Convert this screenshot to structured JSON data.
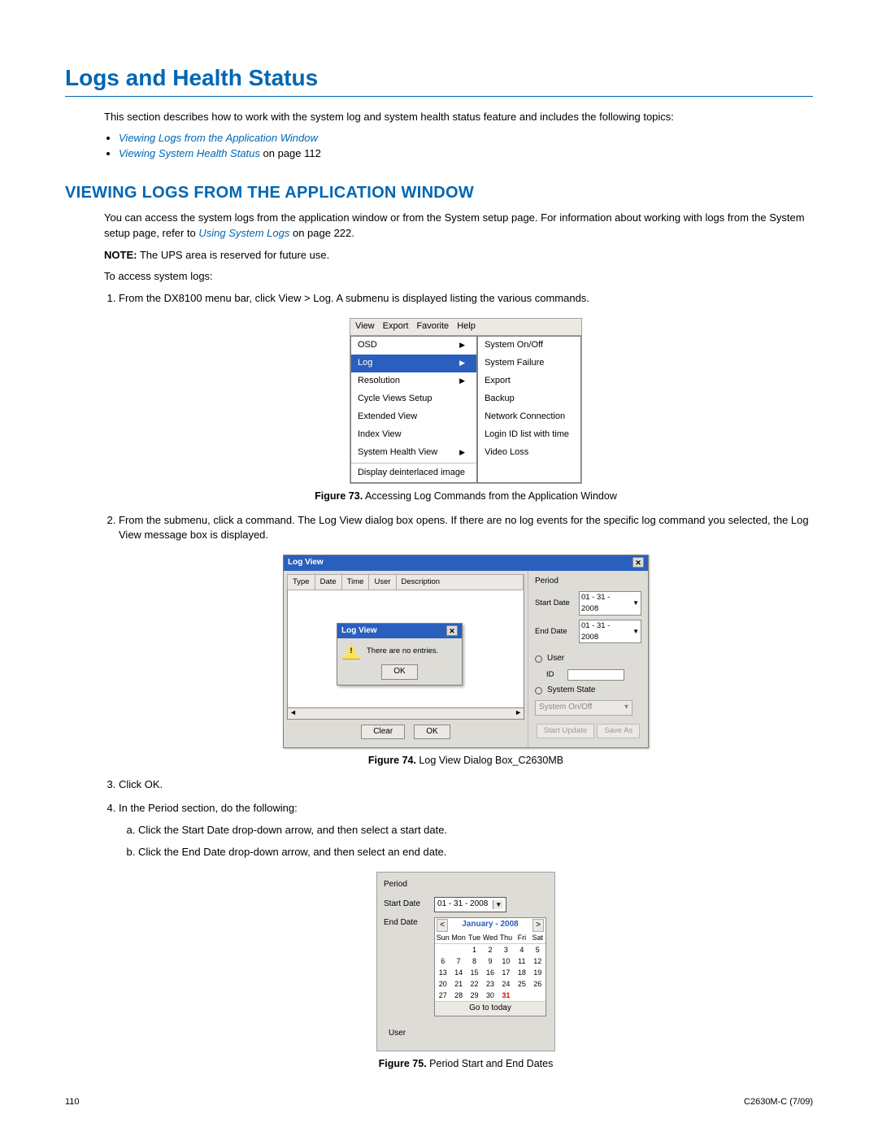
{
  "colors": {
    "accent": "#0066b3",
    "menu_highlight": "#2a5fbd",
    "panel_bg": "#dedcd6",
    "btn_bg": "#ece9e4"
  },
  "heading1": "Logs and Health Status",
  "intro": "This section describes how to work with the system log and system health status feature and includes the following topics:",
  "toc": {
    "item1": "Viewing Logs from the Application Window",
    "item2a": "Viewing System Health Status",
    "item2b": " on page 112"
  },
  "heading2": "VIEWING LOGS FROM THE APPLICATION WINDOW",
  "para1a": "You can access the system logs from the application window or from the System setup page. For information about working with logs from the System setup page, refer to ",
  "para1_link": "Using System Logs",
  "para1b": " on page 222.",
  "note_label": "NOTE:",
  "note_text": " The UPS area is reserved for future use.",
  "access_line": "To access system logs:",
  "step1": "From the DX8100 menu bar, click View > Log. A submenu is displayed listing the various commands.",
  "fig73": {
    "caption_label": "Figure 73.",
    "caption_text": "  Accessing Log Commands from the Application Window",
    "menubar": [
      "View",
      "Export",
      "Favorite",
      "Help"
    ],
    "col1": [
      "OSD",
      "Log",
      "Resolution",
      "Cycle Views Setup",
      "Extended View",
      "Index View",
      "System Health View",
      "Display deinterlaced image"
    ],
    "col1_arrows": [
      true,
      true,
      true,
      false,
      false,
      false,
      true,
      false
    ],
    "col1_selected": 1,
    "col2": [
      "System On/Off",
      "System Failure",
      "Export",
      "Backup",
      "Network Connection",
      "Login ID list with time",
      "Video Loss"
    ]
  },
  "step2": "From the submenu, click a command. The Log View dialog box opens. If there are no log events for the specific log command you selected, the Log View message box is displayed.",
  "fig74": {
    "caption_label": "Figure 74.",
    "caption_text": "  Log View Dialog Box_C2630MB",
    "title": "Log View",
    "columns": [
      "Type",
      "Date",
      "Time",
      "User",
      "Description"
    ],
    "msg_title": "Log View",
    "msg_text": "There are no entries.",
    "ok": "OK",
    "clear": "Clear",
    "period_label": "Period",
    "start_date_label": "Start Date",
    "end_date_label": "End Date",
    "start_date": "01 - 31 - 2008",
    "end_date": "01 - 31 - 2008",
    "user_label": "User",
    "id_label": "ID",
    "system_state_label": "System State",
    "system_state_value": "System On/Off",
    "start_update": "Start Update",
    "save_as": "Save As"
  },
  "step3": "Click OK.",
  "step4": "In the Period section, do the following:",
  "step4a": "Click the Start Date drop-down arrow, and then select a start date.",
  "step4b": "Click the End Date drop-down arrow, and then select an end date.",
  "fig75": {
    "caption_label": "Figure 75.",
    "caption_text": "  Period Start and End Dates",
    "period": "Period",
    "start": "Start Date",
    "end": "End Date",
    "date": "01 - 31 - 2008",
    "month": "January - 2008",
    "dow": [
      "Sun",
      "Mon",
      "Tue",
      "Wed",
      "Thu",
      "Fri",
      "Sat"
    ],
    "weeks": [
      [
        "",
        "",
        "1",
        "2",
        "3",
        "4",
        "5"
      ],
      [
        "6",
        "7",
        "8",
        "9",
        "10",
        "11",
        "12"
      ],
      [
        "13",
        "14",
        "15",
        "16",
        "17",
        "18",
        "19"
      ],
      [
        "20",
        "21",
        "22",
        "23",
        "24",
        "25",
        "26"
      ],
      [
        "27",
        "28",
        "29",
        "30",
        "31",
        "",
        ""
      ]
    ],
    "selected_day": "31",
    "today": "Go to today",
    "user": "User"
  },
  "footer": {
    "page": "110",
    "doc": "C2630M-C (7/09)"
  }
}
